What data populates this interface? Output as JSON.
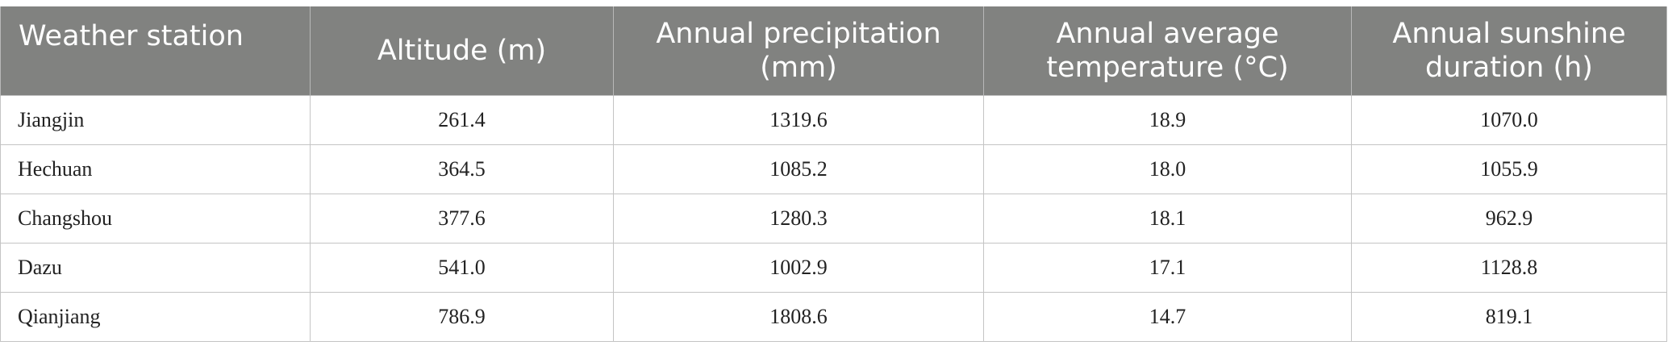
{
  "table": {
    "headers": [
      "Weather station",
      "Altitude (m)",
      "Annual precipitation (mm)",
      "Annual average temperature (°C)",
      "Annual sunshine duration (h)"
    ],
    "rows": [
      [
        "Jiangjin",
        "261.4",
        "1319.6",
        "18.9",
        "1070.0"
      ],
      [
        "Hechuan",
        "364.5",
        "1085.2",
        "18.0",
        "1055.9"
      ],
      [
        "Changshou",
        "377.6",
        "1280.3",
        "18.1",
        "962.9"
      ],
      [
        "Dazu",
        "541.0",
        "1002.9",
        "17.1",
        "1128.8"
      ],
      [
        "Qianjiang",
        "786.9",
        "1808.6",
        "14.7",
        "819.1"
      ]
    ]
  },
  "colors": {
    "header_background": "#818280",
    "header_text": "#ffffff",
    "grid_line": "#c4c4c4"
  }
}
